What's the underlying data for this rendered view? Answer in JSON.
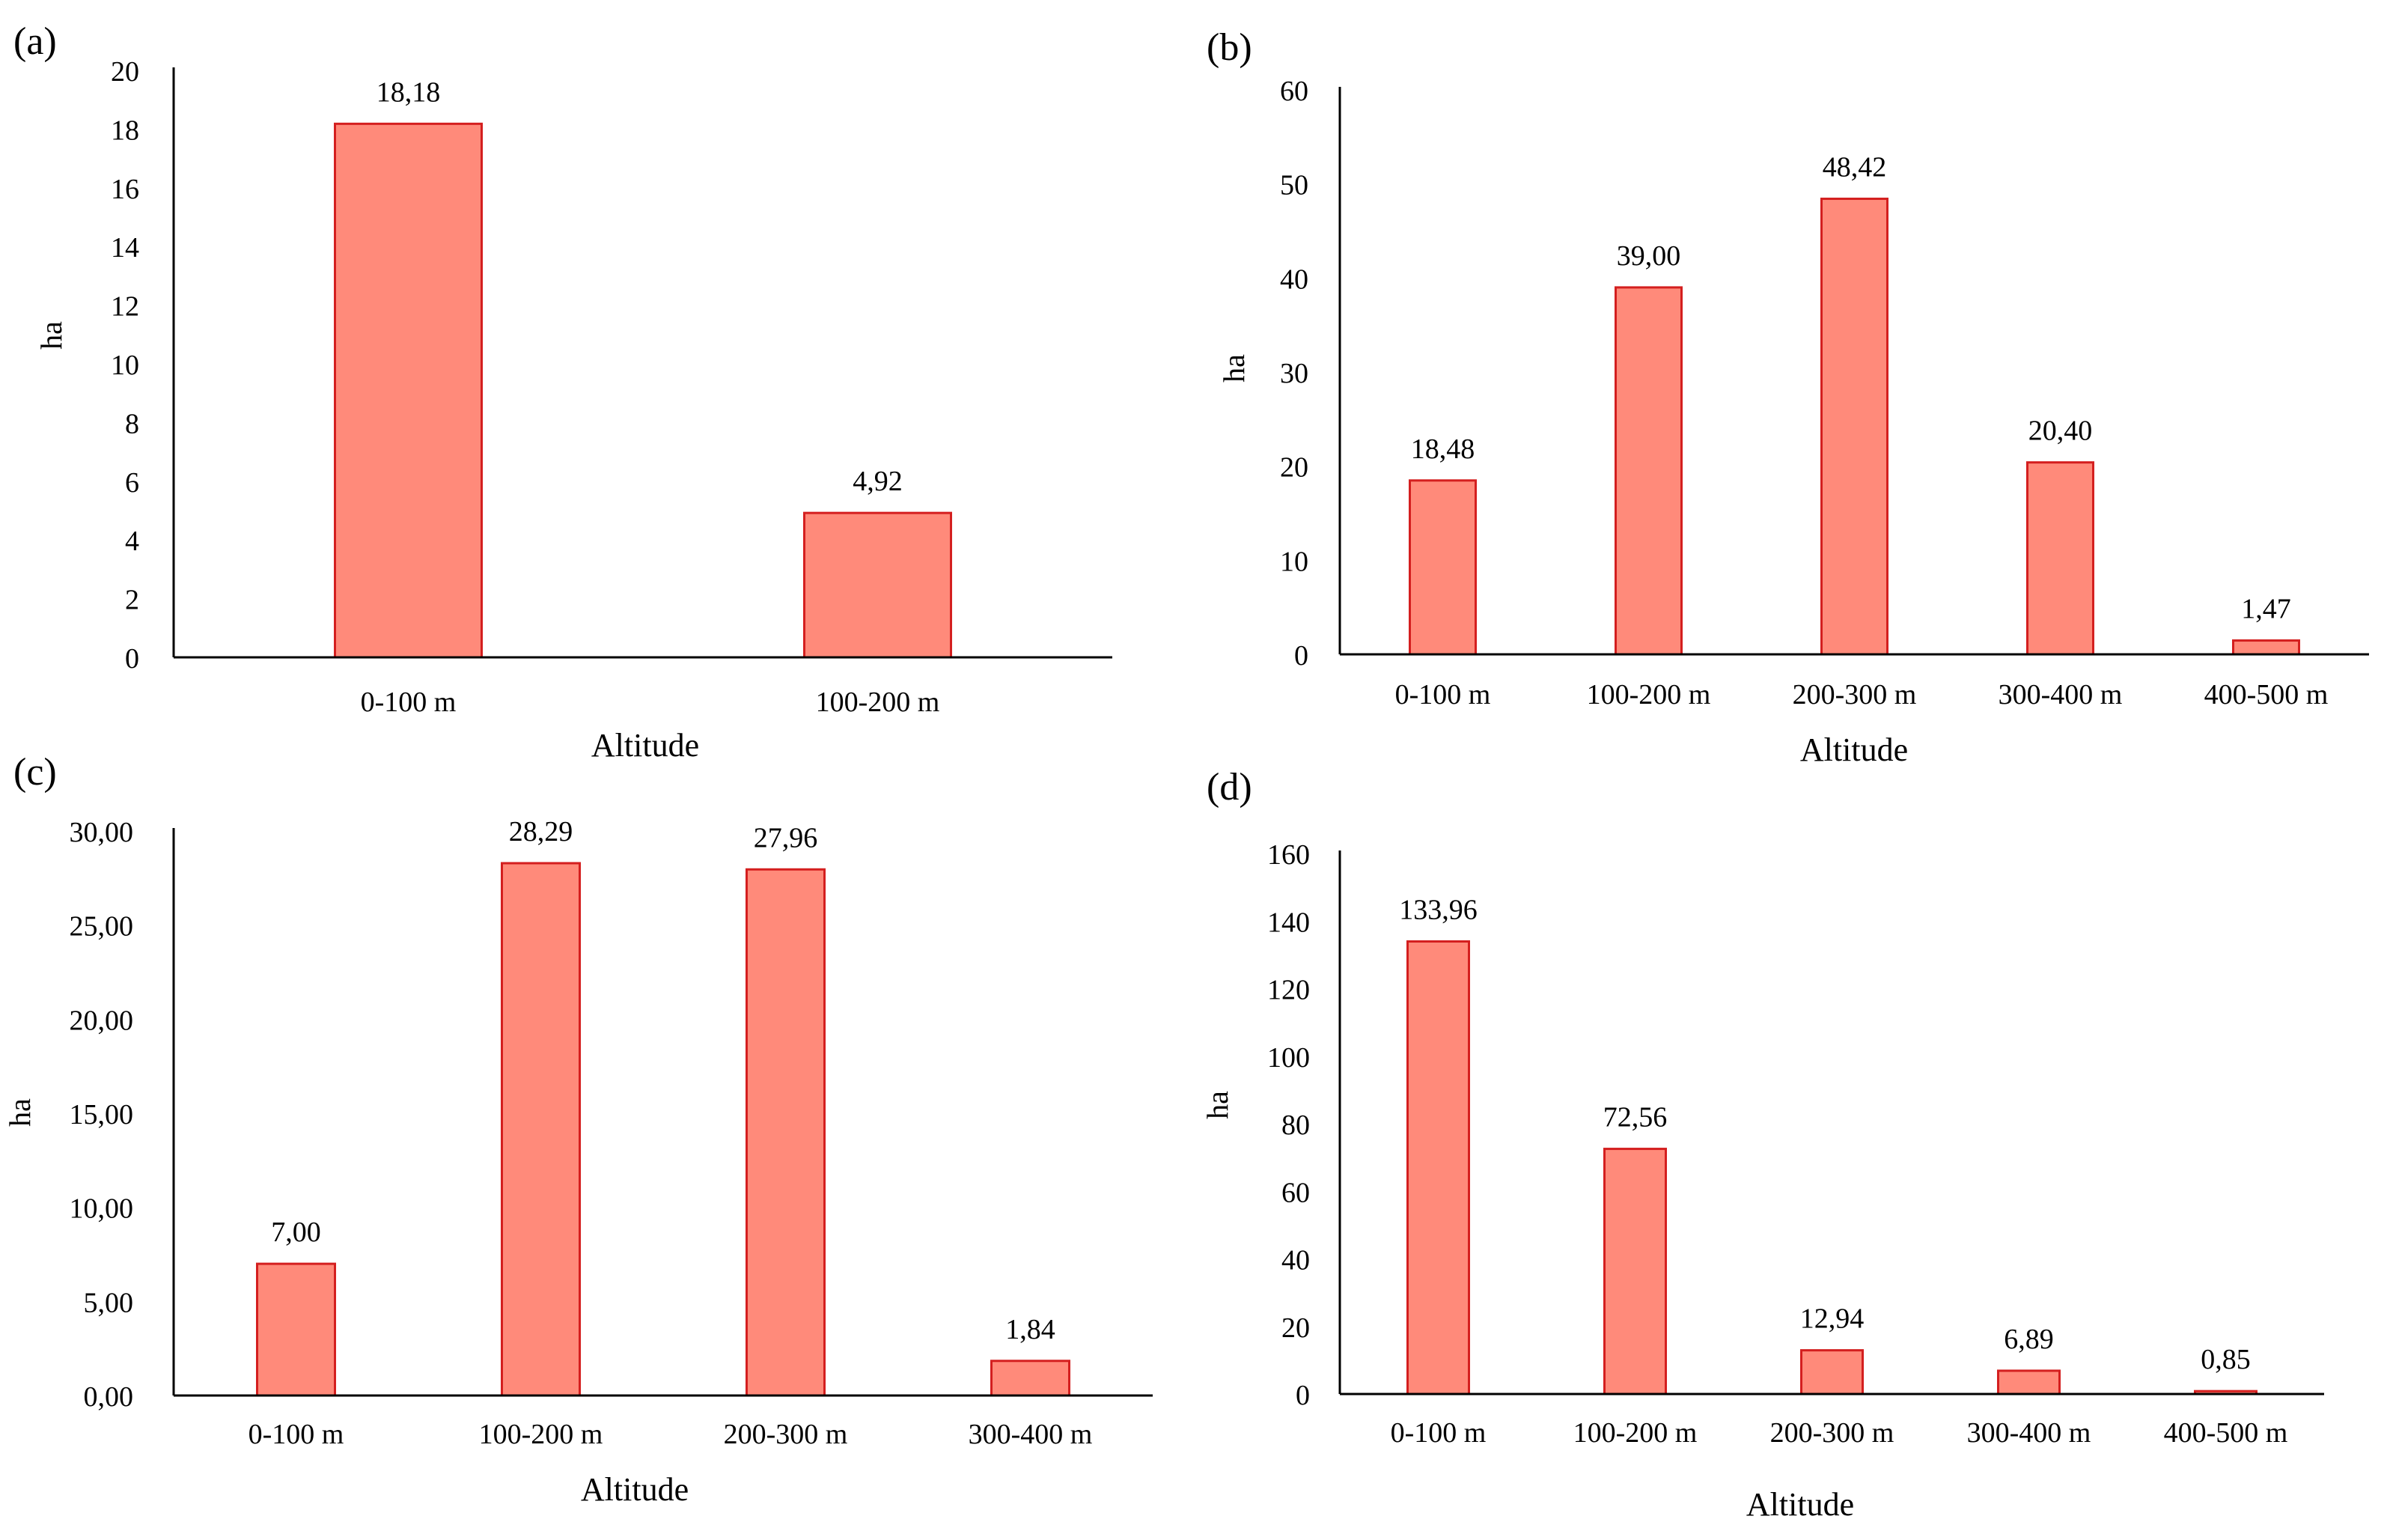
{
  "figure": {
    "bar_fill": "#ff8a7a",
    "bar_stroke": "#d41f1f",
    "axis_color": "#000000",
    "value_format": "comma-decimal"
  },
  "chart_data": [
    {
      "panel_label": "(a)",
      "type": "bar",
      "xlabel": "Altitude",
      "ylabel": "ha",
      "categories": [
        "0-100 m",
        "100-200 m"
      ],
      "values": [
        18.18,
        4.92
      ],
      "value_labels": [
        "18,18",
        "4,92"
      ],
      "ylim": [
        0,
        20
      ],
      "yticks": [
        "0",
        "2",
        "4",
        "6",
        "8",
        "10",
        "12",
        "14",
        "16",
        "18",
        "20"
      ],
      "grid": false,
      "legend": "none"
    },
    {
      "panel_label": "(b)",
      "type": "bar",
      "xlabel": "Altitude",
      "ylabel": "ha",
      "categories": [
        "0-100 m",
        "100-200 m",
        "200-300 m",
        "300-400 m",
        "400-500 m"
      ],
      "values": [
        18.48,
        39.0,
        48.42,
        20.4,
        1.47
      ],
      "value_labels": [
        "18,48",
        "39,00",
        "48,42",
        "20,40",
        "1,47"
      ],
      "ylim": [
        0,
        60
      ],
      "yticks": [
        "0",
        "10",
        "20",
        "30",
        "40",
        "50",
        "60"
      ],
      "grid": false,
      "legend": "none"
    },
    {
      "panel_label": "(c)",
      "type": "bar",
      "xlabel": "Altitude",
      "ylabel": "ha",
      "categories": [
        "0-100 m",
        "100-200 m",
        "200-300 m",
        "300-400 m"
      ],
      "values": [
        7.0,
        28.29,
        27.96,
        1.84
      ],
      "value_labels": [
        "7,00",
        "28,29",
        "27,96",
        "1,84"
      ],
      "ylim": [
        0,
        30
      ],
      "yticks": [
        "0,00",
        "5,00",
        "10,00",
        "15,00",
        "20,00",
        "25,00",
        "30,00"
      ],
      "grid": false,
      "legend": "none"
    },
    {
      "panel_label": "(d)",
      "type": "bar",
      "xlabel": "Altitude",
      "ylabel": "ha",
      "categories": [
        "0-100 m",
        "100-200 m",
        "200-300 m",
        "300-400 m",
        "400-500 m"
      ],
      "values": [
        133.96,
        72.56,
        12.94,
        6.89,
        0.85
      ],
      "value_labels": [
        "133,96",
        "72,56",
        "12,94",
        "6,89",
        "0,85"
      ],
      "ylim": [
        0,
        160
      ],
      "yticks": [
        "0",
        "20",
        "40",
        "60",
        "80",
        "100",
        "120",
        "140",
        "160"
      ],
      "grid": false,
      "legend": "none"
    }
  ]
}
